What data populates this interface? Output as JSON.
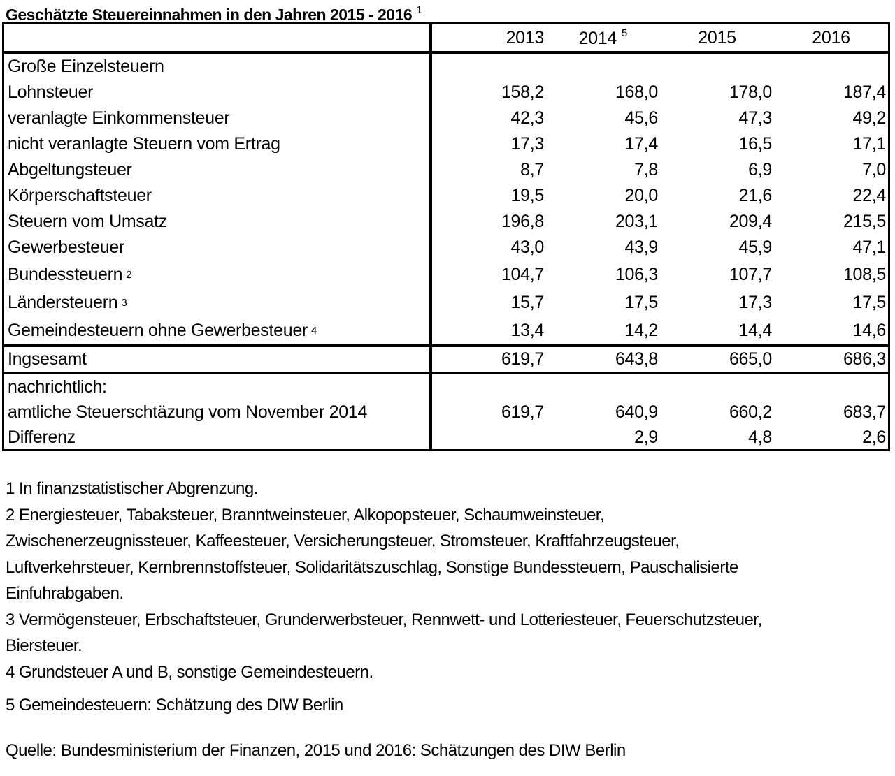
{
  "title": {
    "text": "Geschätzte Steuereinnahmen in den Jahren 2015 - 2016",
    "footnote_ref": "1"
  },
  "table": {
    "columns": [
      "2013",
      "2014",
      "2015",
      "2016"
    ],
    "column_2014_sup": "5",
    "rows": [
      {
        "label": "Große Einzelsteuern",
        "values": [
          "",
          "",
          "",
          ""
        ]
      },
      {
        "label": "Lohnsteuer",
        "values": [
          "158,2",
          "168,0",
          "178,0",
          "187,4"
        ]
      },
      {
        "label": "veranlagte Einkommensteuer",
        "values": [
          "42,3",
          "45,6",
          "47,3",
          "49,2"
        ]
      },
      {
        "label": "nicht veranlagte Steuern vom Ertrag",
        "values": [
          "17,3",
          "17,4",
          "16,5",
          "17,1"
        ]
      },
      {
        "label": "Abgeltungsteuer",
        "values": [
          "8,7",
          "7,8",
          "6,9",
          "7,0"
        ]
      },
      {
        "label": "Körperschaftsteuer",
        "values": [
          "19,5",
          "20,0",
          "21,6",
          "22,4"
        ]
      },
      {
        "label": "Steuern vom Umsatz",
        "values": [
          "196,8",
          "203,1",
          "209,4",
          "215,5"
        ]
      },
      {
        "label": "Gewerbesteuer",
        "values": [
          "43,0",
          "43,9",
          "45,9",
          "47,1"
        ]
      },
      {
        "label": "Bundessteuern",
        "sup": "2",
        "values": [
          "104,7",
          "106,3",
          "107,7",
          "108,5"
        ]
      },
      {
        "label": "Ländersteuern",
        "sup": "3",
        "values": [
          "15,7",
          "17,5",
          "17,3",
          "17,5"
        ]
      },
      {
        "label": "Gemeindesteuern ohne Gewerbesteuer",
        "sup": "4",
        "values": [
          "13,4",
          "14,2",
          "14,4",
          "14,6"
        ]
      }
    ],
    "total_row": {
      "label": "Ingsesamt",
      "values": [
        "619,7",
        "643,8",
        "665,0",
        "686,3"
      ]
    },
    "memo_rows": [
      {
        "label": "nachrichtlich:",
        "values": [
          "",
          "",
          "",
          ""
        ]
      },
      {
        "label": "amtliche Steuerschtäzung vom November 2014",
        "values": [
          "619,7",
          "640,9",
          "660,2",
          "683,7"
        ]
      },
      {
        "label": "Differenz",
        "values": [
          "",
          "2,9",
          "4,8",
          "2,6"
        ]
      }
    ]
  },
  "footnotes": [
    {
      "lines": [
        "1 In finanzstatistischer Abgrenzung."
      ]
    },
    {
      "lines": [
        "2 Energiesteuer, Tabaksteuer, Branntweinsteuer, Alkopopsteuer, Schaumweinsteuer,",
        "Zwischenerzeugnissteuer, Kaffeesteuer, Versicherungsteuer, Stromsteuer, Kraftfahrzeugsteuer,",
        "Luftverkehrsteuer, Kernbrennstoffsteuer, Solidaritätszuschlag, Sonstige Bundessteuern, Pauschalisierte",
        "Einfuhrabgaben."
      ]
    },
    {
      "lines": [
        "3 Vermögensteuer, Erbschaftsteuer, Grunderwerbsteuer, Rennwett- und Lotteriesteuer, Feuerschutzsteuer,",
        "Biersteuer."
      ]
    },
    {
      "lines": [
        "4 Grundsteuer A und B, sonstige Gemeindesteuern."
      ]
    },
    {
      "lines": [
        "5 Gemeindesteuern: Schätzung des DIW Berlin"
      ]
    }
  ],
  "source": "Quelle: Bundesministerium der Finanzen, 2015 und 2016: Schätzungen des DIW Berlin",
  "colors": {
    "text": "#000000",
    "background": "#ffffff",
    "border": "#000000"
  }
}
